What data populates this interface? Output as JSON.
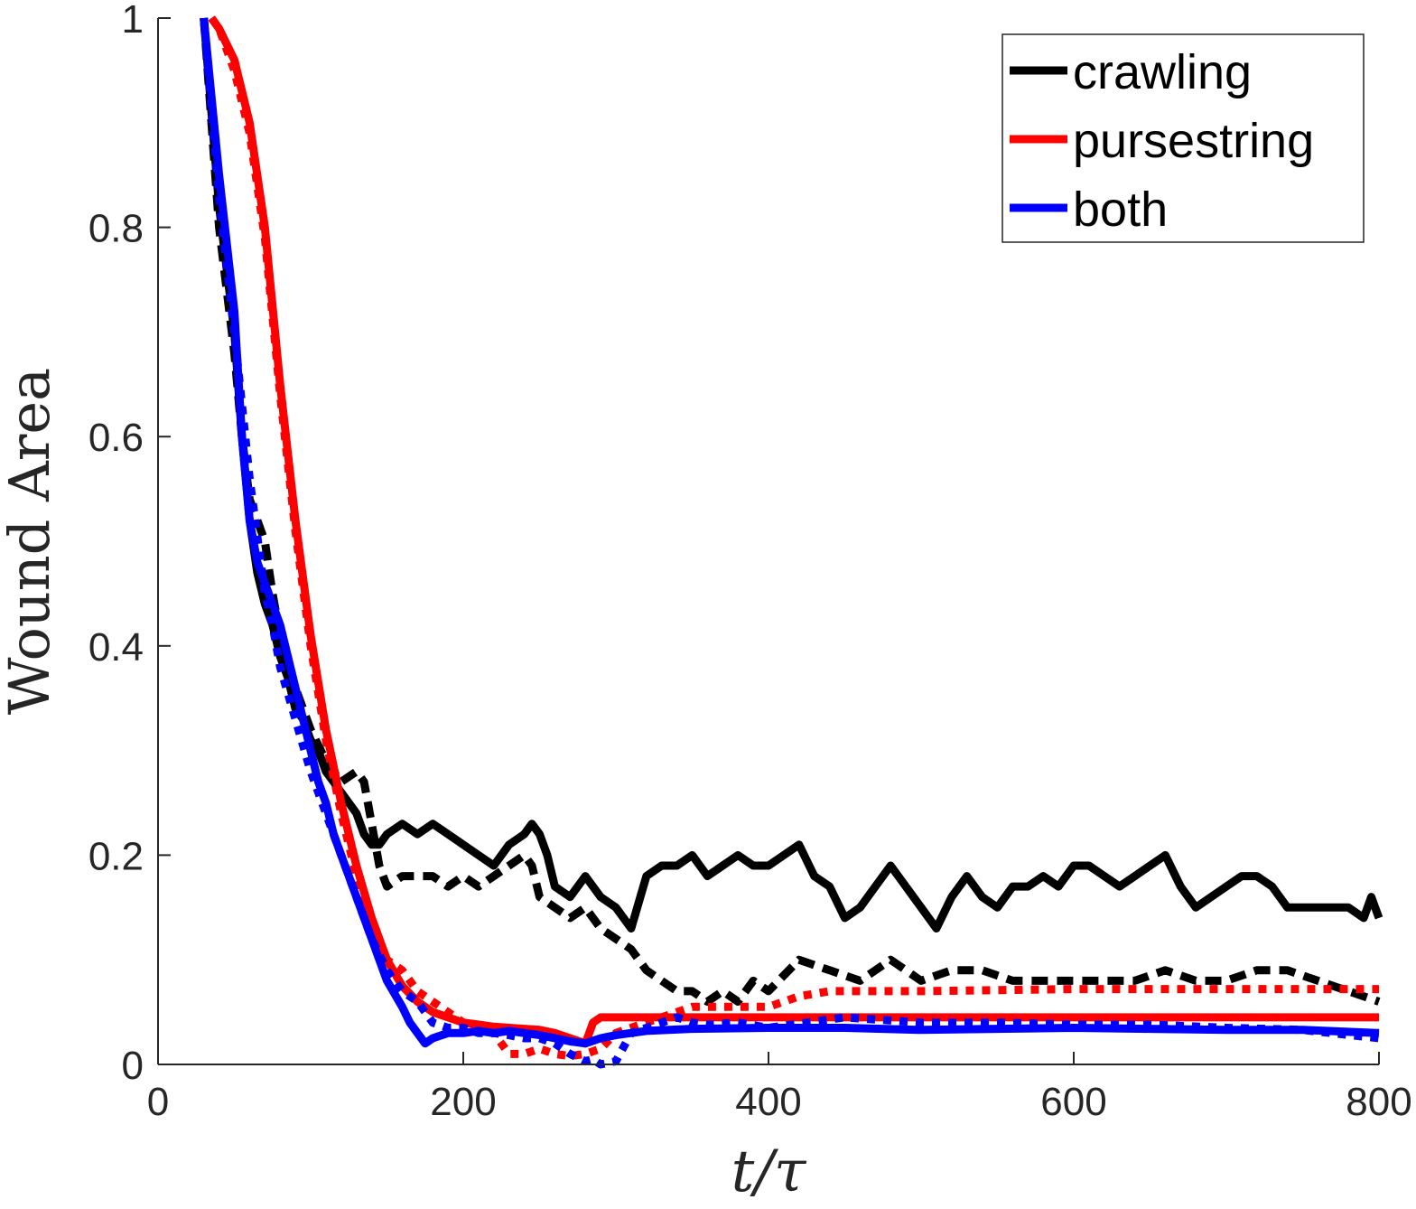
{
  "chart_data": {
    "type": "line",
    "xlabel": "t/τ",
    "ylabel": "Wound Area",
    "xlim": [
      0,
      800
    ],
    "ylim": [
      0,
      1
    ],
    "xticks": [
      "0",
      "200",
      "400",
      "600",
      "800"
    ],
    "yticks": [
      "0",
      "0.2",
      "0.4",
      "0.6",
      "0.8",
      "1"
    ],
    "grid": false,
    "legend_position": "top-right",
    "legend": [
      "crawling",
      "pursestring",
      "both"
    ],
    "colors": {
      "crawling": "#000000",
      "pursestring": "#ff0000",
      "both": "#0000ff"
    },
    "series": [
      {
        "name": "crawling",
        "style": "solid",
        "color": "#000000",
        "x": [
          30,
          40,
          50,
          55,
          60,
          65,
          70,
          75,
          80,
          85,
          90,
          95,
          100,
          105,
          110,
          115,
          120,
          125,
          130,
          135,
          140,
          145,
          150,
          160,
          170,
          180,
          190,
          200,
          210,
          220,
          230,
          240,
          245,
          250,
          255,
          260,
          270,
          280,
          290,
          300,
          310,
          320,
          330,
          340,
          350,
          360,
          370,
          380,
          390,
          400,
          410,
          420,
          430,
          440,
          450,
          460,
          470,
          480,
          490,
          500,
          510,
          520,
          530,
          540,
          550,
          560,
          570,
          580,
          590,
          600,
          610,
          620,
          630,
          640,
          650,
          660,
          670,
          680,
          690,
          700,
          710,
          720,
          730,
          740,
          750,
          760,
          770,
          780,
          790,
          795,
          800
        ],
        "y": [
          1.0,
          0.82,
          0.7,
          0.6,
          0.52,
          0.47,
          0.44,
          0.42,
          0.39,
          0.37,
          0.34,
          0.33,
          0.31,
          0.3,
          0.28,
          0.27,
          0.26,
          0.25,
          0.24,
          0.22,
          0.21,
          0.21,
          0.22,
          0.23,
          0.22,
          0.23,
          0.22,
          0.21,
          0.2,
          0.19,
          0.21,
          0.22,
          0.23,
          0.22,
          0.2,
          0.17,
          0.16,
          0.18,
          0.16,
          0.15,
          0.13,
          0.18,
          0.19,
          0.19,
          0.2,
          0.18,
          0.19,
          0.2,
          0.19,
          0.19,
          0.2,
          0.21,
          0.18,
          0.17,
          0.14,
          0.15,
          0.17,
          0.19,
          0.17,
          0.15,
          0.13,
          0.16,
          0.18,
          0.16,
          0.15,
          0.17,
          0.17,
          0.18,
          0.17,
          0.19,
          0.19,
          0.18,
          0.17,
          0.18,
          0.19,
          0.2,
          0.17,
          0.15,
          0.16,
          0.17,
          0.18,
          0.18,
          0.17,
          0.15,
          0.15,
          0.15,
          0.15,
          0.15,
          0.14,
          0.16,
          0.14
        ]
      },
      {
        "name": "crawling",
        "style": "dashed",
        "color": "#000000",
        "x": [
          30,
          40,
          50,
          55,
          60,
          65,
          70,
          75,
          80,
          90,
          100,
          110,
          120,
          130,
          135,
          140,
          145,
          150,
          160,
          170,
          180,
          190,
          200,
          210,
          220,
          230,
          240,
          245,
          250,
          260,
          270,
          280,
          290,
          300,
          310,
          320,
          330,
          340,
          350,
          360,
          370,
          380,
          390,
          400,
          420,
          440,
          460,
          480,
          500,
          520,
          540,
          560,
          580,
          600,
          620,
          640,
          660,
          680,
          700,
          720,
          740,
          760,
          780,
          800
        ],
        "y": [
          1.0,
          0.8,
          0.68,
          0.6,
          0.54,
          0.52,
          0.5,
          0.45,
          0.41,
          0.36,
          0.32,
          0.29,
          0.27,
          0.28,
          0.27,
          0.23,
          0.19,
          0.17,
          0.18,
          0.18,
          0.18,
          0.17,
          0.18,
          0.17,
          0.18,
          0.19,
          0.2,
          0.19,
          0.16,
          0.15,
          0.14,
          0.15,
          0.13,
          0.12,
          0.11,
          0.09,
          0.08,
          0.07,
          0.07,
          0.06,
          0.07,
          0.06,
          0.08,
          0.07,
          0.1,
          0.09,
          0.08,
          0.1,
          0.08,
          0.09,
          0.09,
          0.08,
          0.08,
          0.08,
          0.08,
          0.08,
          0.09,
          0.08,
          0.08,
          0.09,
          0.09,
          0.08,
          0.07,
          0.06
        ]
      },
      {
        "name": "pursestring",
        "style": "solid",
        "color": "#ff0000",
        "x": [
          35,
          40,
          50,
          60,
          70,
          80,
          90,
          100,
          110,
          120,
          130,
          140,
          150,
          160,
          170,
          180,
          190,
          200,
          210,
          220,
          230,
          240,
          250,
          260,
          270,
          280,
          285,
          290,
          300,
          320,
          350,
          400,
          500,
          600,
          700,
          800
        ],
        "y": [
          1.0,
          0.99,
          0.96,
          0.9,
          0.8,
          0.65,
          0.52,
          0.41,
          0.32,
          0.25,
          0.19,
          0.14,
          0.1,
          0.075,
          0.06,
          0.05,
          0.045,
          0.04,
          0.038,
          0.036,
          0.035,
          0.034,
          0.033,
          0.03,
          0.025,
          0.02,
          0.04,
          0.045,
          0.045,
          0.045,
          0.045,
          0.045,
          0.045,
          0.045,
          0.045,
          0.045
        ]
      },
      {
        "name": "pursestring",
        "style": "dotted",
        "color": "#ff0000",
        "x": [
          35,
          40,
          50,
          60,
          70,
          80,
          90,
          100,
          110,
          120,
          130,
          140,
          150,
          160,
          170,
          180,
          190,
          200,
          210,
          220,
          230,
          240,
          250,
          260,
          270,
          280,
          290,
          300,
          310,
          320,
          330,
          340,
          350,
          360,
          380,
          400,
          410,
          420,
          440,
          460,
          480,
          500,
          600,
          700,
          800
        ],
        "y": [
          1.0,
          0.99,
          0.95,
          0.89,
          0.79,
          0.64,
          0.51,
          0.4,
          0.31,
          0.24,
          0.18,
          0.13,
          0.1,
          0.09,
          0.07,
          0.06,
          0.05,
          0.04,
          0.035,
          0.03,
          0.01,
          0.01,
          0.015,
          0.01,
          0.008,
          0.01,
          0.015,
          0.03,
          0.035,
          0.04,
          0.045,
          0.05,
          0.055,
          0.055,
          0.055,
          0.055,
          0.06,
          0.065,
          0.07,
          0.07,
          0.07,
          0.07,
          0.072,
          0.072,
          0.072
        ]
      },
      {
        "name": "both",
        "style": "solid",
        "color": "#0000ff",
        "x": [
          30,
          40,
          50,
          55,
          60,
          65,
          70,
          80,
          90,
          100,
          105,
          110,
          115,
          120,
          130,
          140,
          150,
          160,
          165,
          170,
          175,
          180,
          190,
          200,
          210,
          220,
          230,
          240,
          250,
          260,
          270,
          280,
          290,
          300,
          320,
          350,
          400,
          450,
          500,
          550,
          600,
          650,
          700,
          750,
          800
        ],
        "y": [
          1.0,
          0.85,
          0.72,
          0.6,
          0.52,
          0.48,
          0.46,
          0.42,
          0.36,
          0.3,
          0.27,
          0.25,
          0.22,
          0.2,
          0.16,
          0.12,
          0.08,
          0.055,
          0.04,
          0.03,
          0.02,
          0.025,
          0.03,
          0.03,
          0.032,
          0.03,
          0.032,
          0.03,
          0.028,
          0.025,
          0.022,
          0.02,
          0.025,
          0.028,
          0.032,
          0.034,
          0.035,
          0.035,
          0.033,
          0.034,
          0.035,
          0.034,
          0.033,
          0.033,
          0.03
        ]
      },
      {
        "name": "both",
        "style": "dotted",
        "color": "#0000ff",
        "x": [
          30,
          40,
          50,
          60,
          70,
          75,
          80,
          90,
          100,
          110,
          120,
          130,
          140,
          150,
          160,
          170,
          180,
          190,
          200,
          210,
          220,
          230,
          240,
          250,
          260,
          270,
          280,
          285,
          290,
          300,
          310,
          320,
          330,
          340,
          350,
          360,
          380,
          400,
          450,
          500,
          550,
          600,
          650,
          700,
          750,
          800
        ],
        "y": [
          1.0,
          0.83,
          0.7,
          0.56,
          0.45,
          0.42,
          0.38,
          0.33,
          0.28,
          0.24,
          0.2,
          0.16,
          0.12,
          0.09,
          0.07,
          0.06,
          0.04,
          0.035,
          0.035,
          0.03,
          0.03,
          0.028,
          0.025,
          0.025,
          0.02,
          0.01,
          0.003,
          0.005,
          0.0,
          0.003,
          0.03,
          0.035,
          0.04,
          0.045,
          0.04,
          0.038,
          0.04,
          0.035,
          0.045,
          0.04,
          0.04,
          0.038,
          0.038,
          0.035,
          0.033,
          0.025
        ]
      }
    ]
  }
}
